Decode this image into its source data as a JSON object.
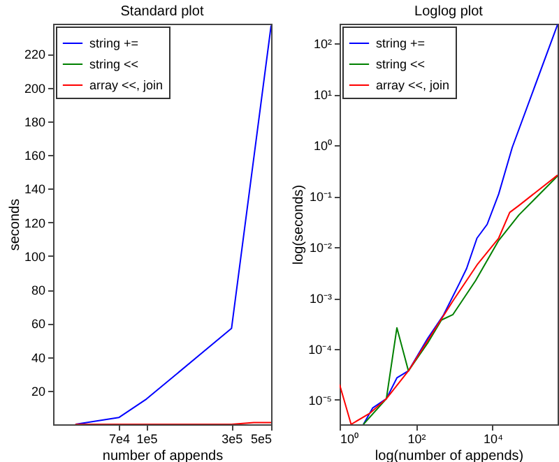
{
  "chart_data": [
    {
      "type": "line",
      "title": "Standard plot",
      "xlabel": "number of appends",
      "ylabel": "seconds",
      "log": "x",
      "legend": "top left",
      "xlim": [
        30000,
        500000
      ],
      "xticks": [
        {
          "value": 70000,
          "label": "7e4"
        },
        {
          "value": 100000,
          "label": "1e5"
        },
        {
          "value": 300000,
          "label": "3e5"
        },
        {
          "value": 500000,
          "label": "5e5"
        }
      ],
      "ylim": [
        0,
        238
      ],
      "yticks": [
        20,
        40,
        60,
        80,
        100,
        120,
        140,
        160,
        180,
        200,
        220
      ],
      "series": [
        {
          "name": "string +=",
          "color": "#0000ff",
          "x": [
            40000,
            70000,
            100000,
            300000,
            500000
          ],
          "values": [
            0,
            4,
            15,
            57,
            237
          ]
        },
        {
          "name": "string <<",
          "color": "#008000"
        },
        {
          "name": "array <<, join",
          "color": "#ff0000",
          "x": [
            40000,
            300000,
            400000,
            500000
          ],
          "values": [
            0,
            0,
            1,
            1
          ]
        }
      ]
    },
    {
      "type": "line",
      "title": "Loglog plot",
      "xlabel": "log(number of appends)",
      "ylabel": "log(seconds)",
      "log": "xy",
      "legend": "top left",
      "xlim": [
        1,
        500000
      ],
      "xticks": [
        {
          "value": 1,
          "label": "10⁰"
        },
        {
          "value": 100,
          "label": "10²"
        },
        {
          "value": 10000,
          "label": "10⁴"
        }
      ],
      "ylim": [
        3.3e-06,
        245
      ],
      "yticks": [
        {
          "value": 1e-05,
          "label": "10⁻⁵"
        },
        {
          "value": 0.0001,
          "label": "10⁻⁴"
        },
        {
          "value": 0.001,
          "label": "10⁻³"
        },
        {
          "value": 0.01,
          "label": "10⁻²"
        },
        {
          "value": 0.1,
          "label": "10⁻¹"
        },
        {
          "value": 1,
          "label": "10⁰"
        },
        {
          "value": 10,
          "label": "10¹"
        },
        {
          "value": 100,
          "label": "10²"
        }
      ],
      "series": [
        {
          "name": "string +=",
          "color": "#0000ff",
          "x": [
            4.2,
            7.3,
            16.7,
            31.5,
            63,
            200,
            525,
            1380,
            2090,
            3900,
            7200,
            14400,
            32600,
            500000
          ],
          "values": [
            3.3e-06,
            6.9e-06,
            1.05e-05,
            2.7e-05,
            3.7e-05,
            0.00016,
            0.00047,
            0.002,
            0.0038,
            0.015,
            0.028,
            0.11,
            0.91,
            237
          ]
        },
        {
          "name": "string <<",
          "color": "#008000",
          "x": [
            4.2,
            16.7,
            31.5,
            63,
            200,
            460,
            910,
            3600,
            14400,
            49000,
            500000
          ],
          "values": [
            3.3e-06,
            1.05e-05,
            0.00026,
            3.7e-05,
            0.00013,
            0.00037,
            0.00047,
            0.0022,
            0.0135,
            0.043,
            0.25
          ]
        },
        {
          "name": "array <<, join",
          "color": "#ff0000",
          "x": [
            1,
            2,
            6.3,
            16.7,
            63,
            200,
            910,
            4100,
            14400,
            28000,
            49000,
            500000
          ],
          "values": [
            2e-05,
            3.3e-06,
            5.5e-06,
            1.05e-05,
            3.7e-05,
            0.000145,
            0.00087,
            0.0047,
            0.015,
            0.048,
            0.066,
            0.26
          ]
        }
      ]
    }
  ]
}
